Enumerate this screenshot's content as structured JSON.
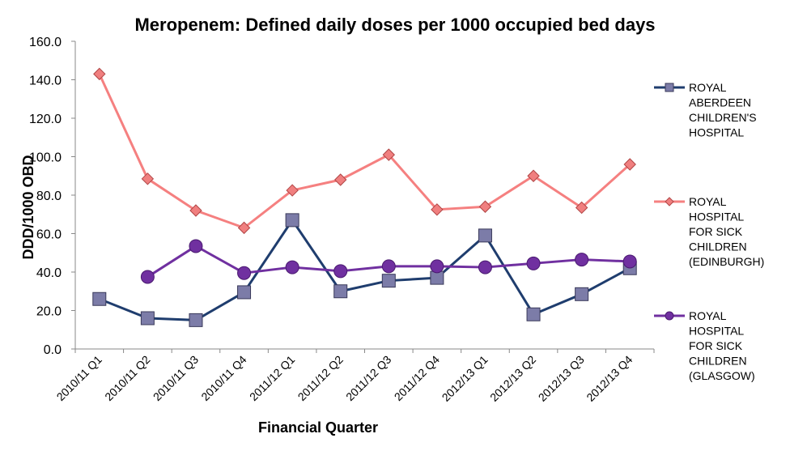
{
  "chart_data": {
    "type": "line",
    "title": "Meropenem: Defined daily doses per 1000 occupied bed days",
    "xlabel": "Financial Quarter",
    "ylabel": "DDD/1000 OBD",
    "ylim": [
      0,
      160
    ],
    "yticks": [
      "0.0",
      "20.0",
      "40.0",
      "60.0",
      "80.0",
      "100.0",
      "120.0",
      "140.0",
      "160.0"
    ],
    "categories": [
      "2010/11 Q1",
      "2010/11 Q2",
      "2010/11 Q3",
      "2010/11 Q4",
      "2011/12 Q1",
      "2011/12 Q2",
      "2011/12 Q3",
      "2011/12 Q4",
      "2012/13 Q1",
      "2012/13 Q2",
      "2012/13 Q3",
      "2012/13 Q4"
    ],
    "grid": false,
    "legend_position": "right",
    "series": [
      {
        "name": "ROYAL ABERDEEN CHILDREN'S HOSPITAL",
        "legend_lines": [
          "ROYAL",
          "ABERDEEN",
          "CHILDREN'S",
          "HOSPITAL"
        ],
        "color": "#1f3d6e",
        "marker": "square",
        "marker_color": "#7c7ca8",
        "values": [
          26,
          16,
          15,
          29.5,
          67,
          30,
          35.5,
          37,
          59,
          18,
          28.5,
          42
        ]
      },
      {
        "name": "ROYAL HOSPITAL FOR SICK CHILDREN (EDINBURGH)",
        "legend_lines": [
          "ROYAL",
          "HOSPITAL",
          "FOR SICK",
          "CHILDREN",
          "(EDINBURGH)"
        ],
        "color": "#f58080",
        "marker": "diamond",
        "marker_color": "#f07f7f",
        "values": [
          143,
          88.5,
          72,
          63,
          82.5,
          88,
          101,
          72.5,
          74,
          90,
          73.5,
          96
        ]
      },
      {
        "name": "ROYAL HOSPITAL FOR SICK CHILDREN (GLASGOW)",
        "legend_lines": [
          "ROYAL",
          "HOSPITAL",
          "FOR SICK",
          "CHILDREN",
          "(GLASGOW)"
        ],
        "color": "#7030a0",
        "marker": "circle",
        "marker_color": "#7030a0",
        "values": [
          null,
          37.5,
          53.5,
          39.5,
          42.5,
          40.5,
          43,
          43,
          42.5,
          44.5,
          46.5,
          45.5
        ]
      }
    ]
  }
}
